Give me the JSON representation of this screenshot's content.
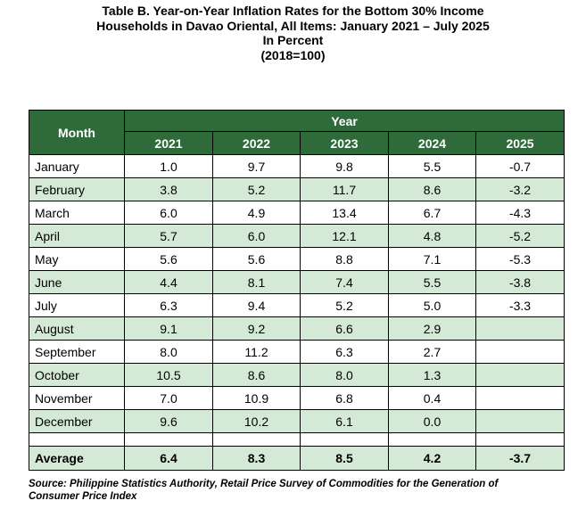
{
  "title": {
    "line1": "Table B. Year-on-Year Inflation Rates for the Bottom 30% Income",
    "line2": "Households in Davao Oriental, All Items: January 2021 – July 2025",
    "line3": "In Percent",
    "line4": "(2018=100)"
  },
  "header": {
    "month": "Month",
    "year": "Year",
    "years": [
      "2021",
      "2022",
      "2023",
      "2024",
      "2025"
    ]
  },
  "rows": [
    {
      "month": "January",
      "values": [
        "1.0",
        "9.7",
        "9.8",
        "5.5",
        "-0.7"
      ]
    },
    {
      "month": "February",
      "values": [
        "3.8",
        "5.2",
        "11.7",
        "8.6",
        "-3.2"
      ]
    },
    {
      "month": "March",
      "values": [
        "6.0",
        "4.9",
        "13.4",
        "6.7",
        "-4.3"
      ]
    },
    {
      "month": "April",
      "values": [
        "5.7",
        "6.0",
        "12.1",
        "4.8",
        "-5.2"
      ]
    },
    {
      "month": "May",
      "values": [
        "5.6",
        "5.6",
        "8.8",
        "7.1",
        "-5.3"
      ]
    },
    {
      "month": "June",
      "values": [
        "4.4",
        "8.1",
        "7.4",
        "5.5",
        "-3.8"
      ]
    },
    {
      "month": "July",
      "values": [
        "6.3",
        "9.4",
        "5.2",
        "5.0",
        "-3.3"
      ]
    },
    {
      "month": "August",
      "values": [
        "9.1",
        "9.2",
        "6.6",
        "2.9",
        ""
      ]
    },
    {
      "month": "September",
      "values": [
        "8.0",
        "11.2",
        "6.3",
        "2.7",
        ""
      ]
    },
    {
      "month": "October",
      "values": [
        "10.5",
        "8.6",
        "8.0",
        "1.3",
        ""
      ]
    },
    {
      "month": "November",
      "values": [
        "7.0",
        "10.9",
        "6.8",
        "0.4",
        ""
      ]
    },
    {
      "month": "December",
      "values": [
        "9.6",
        "10.2",
        "6.1",
        "0.0",
        ""
      ]
    }
  ],
  "average": {
    "label": "Average",
    "values": [
      "6.4",
      "8.3",
      "8.5",
      "4.2",
      "-3.7"
    ]
  },
  "source": {
    "line1": "Source: Philippine Statistics Authority, Retail Price Survey of Commodities for the Generation of",
    "line2": "Consumer Price Index"
  },
  "colors": {
    "header_green": "#2f6b3a",
    "row_green": "#d5ead6"
  }
}
